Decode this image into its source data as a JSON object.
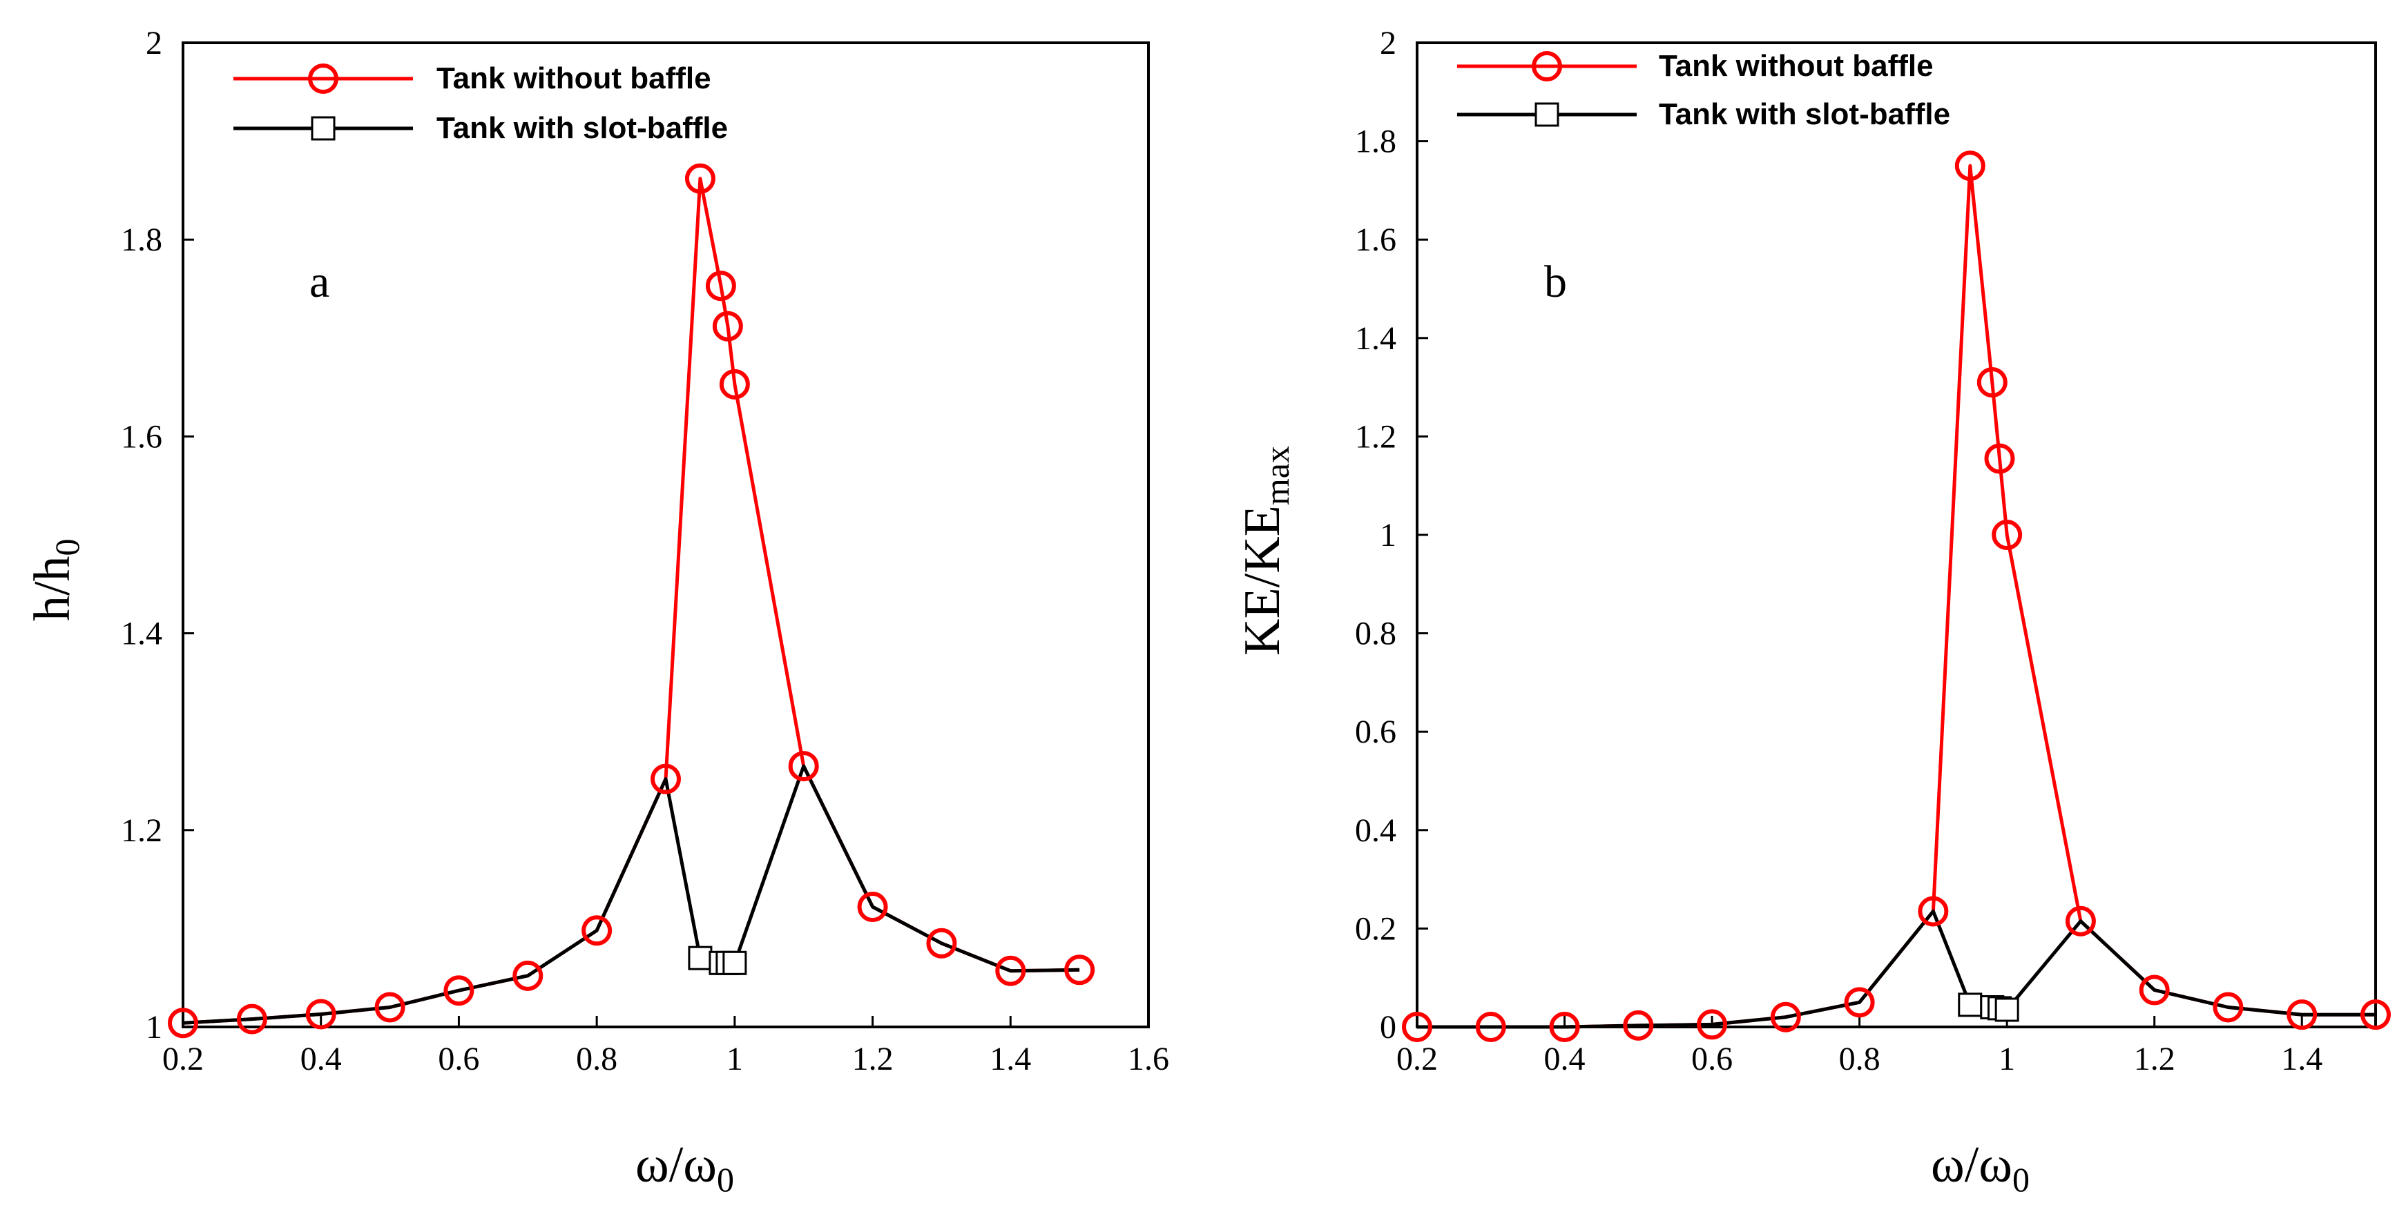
{
  "chart_data": [
    {
      "type": "line",
      "panel_label": "a",
      "xlabel": "ω/ω",
      "xlabel_sub": "0",
      "ylabel": "h/h",
      "ylabel_sub": "0",
      "xlim": [
        0.2,
        1.6
      ],
      "ylim": [
        1.0,
        2.0
      ],
      "xticks": [
        0.2,
        0.4,
        0.6,
        0.8,
        1.0,
        1.2,
        1.4,
        1.6
      ],
      "xtick_labels": [
        "0.2",
        "0.4",
        "0.6",
        "0.8",
        "1",
        "1.2",
        "1.4",
        "1.6"
      ],
      "yticks": [
        1.0,
        1.2,
        1.4,
        1.6,
        1.8,
        2.0
      ],
      "ytick_labels": [
        "1",
        "1.2",
        "1.4",
        "1.6",
        "1.8",
        "2"
      ],
      "legend_position": "top-left",
      "series": [
        {
          "name": "Tank without baffle",
          "color": "#ff0000",
          "marker": "circle",
          "x": [
            0.2,
            0.3,
            0.4,
            0.5,
            0.6,
            0.7,
            0.8,
            0.9,
            0.95,
            0.98,
            0.99,
            1.0,
            1.1,
            1.2,
            1.3,
            1.4,
            1.5
          ],
          "y": [
            1.004,
            1.008,
            1.013,
            1.02,
            1.037,
            1.052,
            1.098,
            1.252,
            1.862,
            1.753,
            1.712,
            1.653,
            1.265,
            1.122,
            1.085,
            1.057,
            1.058
          ]
        },
        {
          "name": "Tank with slot-baffle",
          "color": "#000000",
          "marker": "square",
          "x": [
            0.2,
            0.3,
            0.4,
            0.5,
            0.6,
            0.7,
            0.8,
            0.9,
            0.95,
            0.98,
            0.99,
            1.0,
            1.1,
            1.2,
            1.3,
            1.4,
            1.5
          ],
          "y": [
            1.004,
            1.008,
            1.013,
            1.02,
            1.037,
            1.052,
            1.098,
            1.252,
            1.07,
            1.065,
            1.065,
            1.065,
            1.265,
            1.122,
            1.085,
            1.057,
            1.058
          ]
        }
      ]
    },
    {
      "type": "line",
      "panel_label": "b",
      "xlabel": "ω/ω",
      "xlabel_sub": "0",
      "ylabel": "KE/KE",
      "ylabel_sub": "max",
      "xlim": [
        0.2,
        1.5
      ],
      "ylim": [
        0,
        2.0
      ],
      "xticks": [
        0.2,
        0.4,
        0.6,
        0.8,
        1.0,
        1.2,
        1.4
      ],
      "xtick_labels": [
        "0.2",
        "0.4",
        "0.6",
        "0.8",
        "1",
        "1.2",
        "1.4"
      ],
      "yticks": [
        0,
        0.2,
        0.4,
        0.6,
        0.8,
        1.0,
        1.2,
        1.4,
        1.6,
        1.8,
        2.0
      ],
      "ytick_labels": [
        "0",
        "0.2",
        "0.4",
        "0.6",
        "0.8",
        "1",
        "1.2",
        "1.4",
        "1.6",
        "1.8",
        "2"
      ],
      "legend_position": "top-left",
      "series": [
        {
          "name": "Tank without baffle",
          "color": "#ff0000",
          "marker": "circle",
          "x": [
            0.2,
            0.3,
            0.4,
            0.5,
            0.6,
            0.7,
            0.8,
            0.9,
            0.95,
            0.98,
            0.99,
            1.0,
            1.1,
            1.2,
            1.3,
            1.4,
            1.5
          ],
          "y": [
            0.0,
            0.0,
            0.0,
            0.003,
            0.005,
            0.02,
            0.05,
            0.235,
            1.75,
            1.31,
            1.155,
            1.0,
            0.215,
            0.075,
            0.04,
            0.025,
            0.025
          ]
        },
        {
          "name": "Tank with slot-baffle",
          "color": "#000000",
          "marker": "square",
          "x": [
            0.2,
            0.3,
            0.4,
            0.5,
            0.6,
            0.7,
            0.8,
            0.9,
            0.95,
            0.98,
            0.99,
            1.0,
            1.1,
            1.2,
            1.3,
            1.4,
            1.5
          ],
          "y": [
            0.0,
            0.0,
            0.0,
            0.003,
            0.005,
            0.02,
            0.05,
            0.235,
            0.045,
            0.04,
            0.038,
            0.035,
            0.215,
            0.075,
            0.04,
            0.025,
            0.025
          ]
        }
      ]
    }
  ]
}
